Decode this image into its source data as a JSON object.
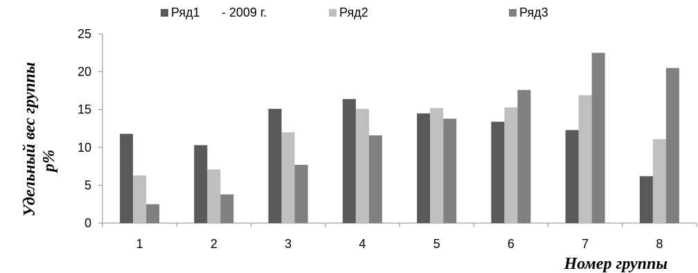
{
  "chart_data": {
    "type": "bar",
    "categories": [
      "1",
      "2",
      "3",
      "4",
      "5",
      "6",
      "7",
      "8"
    ],
    "series": [
      {
        "name": "Ряд1",
        "legend_suffix": "- 2009 г.",
        "color": "#595959",
        "values": [
          11.8,
          10.3,
          15.1,
          16.4,
          14.5,
          13.4,
          12.3,
          6.2
        ]
      },
      {
        "name": "Ряд2",
        "color": "#bfbfbf",
        "values": [
          6.3,
          7.1,
          12.0,
          15.1,
          15.2,
          15.3,
          16.9,
          11.1
        ]
      },
      {
        "name": "Ряд3",
        "color": "#808080",
        "values": [
          2.5,
          3.8,
          7.7,
          11.6,
          13.8,
          17.6,
          22.5,
          20.5
        ]
      }
    ],
    "ylim": [
      0,
      25
    ],
    "yticks": [
      "0",
      "5",
      "10",
      "15",
      "20",
      "25"
    ],
    "ytick_values": [
      0,
      5,
      10,
      15,
      20,
      25
    ],
    "ylabel_line1": "Удельный   вес   группы",
    "ylabel_line2": "p%",
    "xlabel": "Номер группы",
    "grid": false,
    "legend_position": "top"
  }
}
